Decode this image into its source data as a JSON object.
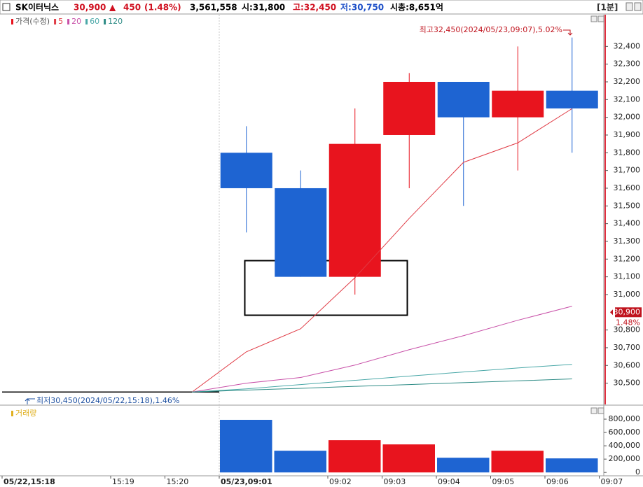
{
  "header": {
    "name": "SK이터닉스",
    "price": "30,900",
    "arrow": "▲",
    "change": "450",
    "change_pct": "(1.48%)",
    "volume": "3,561,558",
    "open": "시:31,800",
    "high": "고:32,450",
    "low": "저:30,750",
    "market_cap": "시총:8,651억",
    "interval": "[1분]"
  },
  "chart_data": [
    {
      "type": "candlestick",
      "legend_label": "가격(수정)",
      "legend_color": "#e8141e",
      "open": [
        30450,
        30450,
        30450,
        30450,
        31800,
        31600,
        31100,
        31900,
        32200,
        32000,
        32150
      ],
      "high": [
        30450,
        30450,
        30450,
        30450,
        31950,
        31700,
        32050,
        32250,
        32200,
        32400,
        32450
      ],
      "low": [
        30450,
        30450,
        30450,
        30450,
        31350,
        31100,
        31000,
        31600,
        31500,
        31700,
        31800
      ],
      "close": [
        30450,
        30450,
        30450,
        30450,
        31600,
        31100,
        31850,
        32200,
        32000,
        32150,
        32050
      ],
      "up_color": "#e8141e",
      "down_color": "#1e64d2",
      "flat_color": "#000000",
      "series": [
        {
          "name": "5",
          "color": "#e03c46",
          "values": [
            null,
            null,
            null,
            30450,
            30677,
            30807,
            31095,
            31430,
            31746,
            31856,
            32049
          ]
        },
        {
          "name": "20",
          "color": "#c850a8",
          "values": [
            null,
            null,
            null,
            30450,
            30500,
            30532,
            30602,
            30689,
            30768,
            30855,
            30934
          ]
        },
        {
          "name": "60",
          "color": "#4aa8a8",
          "values": [
            null,
            null,
            null,
            30450,
            30468,
            30492,
            30516,
            30540,
            30563,
            30586,
            30606
          ]
        },
        {
          "name": "120",
          "color": "#2e8c86",
          "values": [
            null,
            null,
            null,
            30450,
            30461,
            30471,
            30482,
            30492,
            30503,
            30513,
            30524
          ]
        }
      ],
      "ylim": [
        30380,
        32575
      ],
      "yticks": [
        {
          "value": 30500,
          "label": "30,500"
        },
        {
          "value": 30600,
          "label": "30,600"
        },
        {
          "value": 30700,
          "label": "30,700"
        },
        {
          "value": 30800,
          "label": "30,800"
        },
        {
          "value": 31000,
          "label": "31,000"
        },
        {
          "value": 31100,
          "label": "31,100"
        },
        {
          "value": 31200,
          "label": "31,200"
        },
        {
          "value": 31300,
          "label": "31,300"
        },
        {
          "value": 31400,
          "label": "31,400"
        },
        {
          "value": 31500,
          "label": "31,500"
        },
        {
          "value": 31600,
          "label": "31,600"
        },
        {
          "value": 31700,
          "label": "31,700"
        },
        {
          "value": 31800,
          "label": "31,800"
        },
        {
          "value": 31900,
          "label": "31,900"
        },
        {
          "value": 32000,
          "label": "32,000"
        },
        {
          "value": 32100,
          "label": "32,100"
        },
        {
          "value": 32200,
          "label": "32,200"
        },
        {
          "value": 32300,
          "label": "32,300"
        },
        {
          "value": 32400,
          "label": "32,400"
        }
      ],
      "current": {
        "value": 30900,
        "label": "30,900",
        "change": "1.48%",
        "color": "#c0141e"
      },
      "annotations": {
        "max": "최고32,450(2024/05/23,09:07),5.02%",
        "min": "최저30,450(2024/05/22,15:18),1.46%"
      }
    },
    {
      "type": "bar",
      "legend_label": "거래량",
      "legend_color": "#e0b020",
      "values": [
        null,
        null,
        null,
        null,
        790000,
        326000,
        484000,
        421000,
        221000,
        326000,
        211000
      ],
      "colors": [
        null,
        null,
        null,
        null,
        "#1e64d2",
        "#1e64d2",
        "#e8141e",
        "#e8141e",
        "#1e64d2",
        "#e8141e",
        "#1e64d2"
      ],
      "ylim": [
        -40000,
        1000000
      ],
      "yticks": [
        0,
        {
          "value": 200000,
          "label": "200,000"
        },
        {
          "value": 400000,
          "label": "400,000"
        },
        {
          "value": 600000,
          "label": "600,000"
        },
        {
          "value": 800000,
          "label": "800,000"
        }
      ],
      "xticks": [
        {
          "value": 0,
          "label": "05/22,15:18"
        },
        {
          "value": 2,
          "label": "15:19"
        },
        {
          "value": 3,
          "label": "15:20"
        },
        {
          "value": 4,
          "label": "05/23,09:01"
        },
        {
          "value": 6,
          "label": "09:02"
        },
        {
          "value": 7,
          "label": "09:03"
        },
        {
          "value": 8,
          "label": "09:04"
        },
        {
          "value": 9,
          "label": "09:05"
        },
        {
          "value": 10,
          "label": "09:06"
        },
        {
          "value": 11,
          "label": "09:07"
        }
      ]
    }
  ]
}
